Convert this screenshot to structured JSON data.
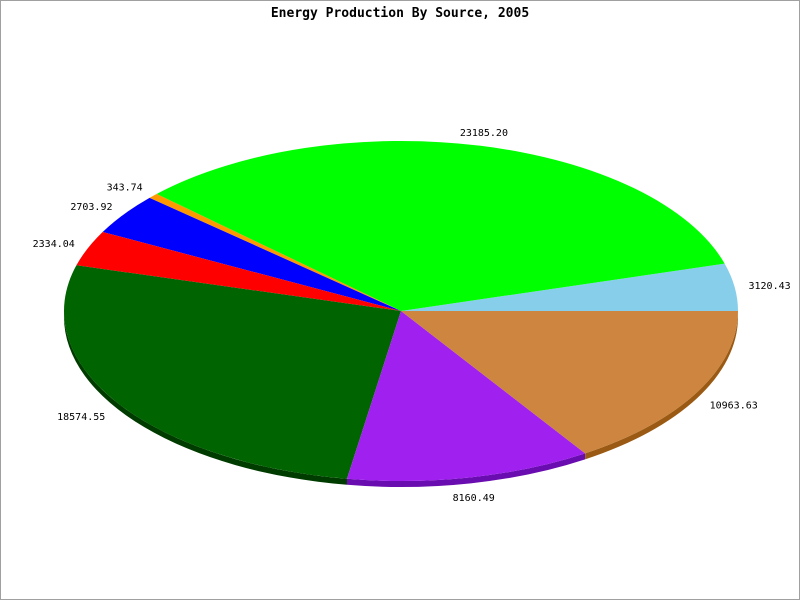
{
  "chart_data": {
    "type": "pie",
    "title": "Energy Production By Source, 2005",
    "start_angle_deg": 0,
    "direction": "counterclockwise",
    "slices": [
      {
        "value": 3120.43,
        "label": "3120.43",
        "color": "#87ceeb",
        "side": "#6fa9c2"
      },
      {
        "value": 23185.2,
        "label": "23185.20",
        "color": "#00ff00",
        "side": "#00b000"
      },
      {
        "value": 343.74,
        "label": "343.74",
        "color": "#ff9900",
        "side": "#c07000"
      },
      {
        "value": 2703.92,
        "label": "2703.92",
        "color": "#0000ff",
        "side": "#0000a8"
      },
      {
        "value": 2334.04,
        "label": "2334.04",
        "color": "#ff0000",
        "side": "#b00000"
      },
      {
        "value": 18574.55,
        "label": "18574.55",
        "color": "#006400",
        "side": "#003c00"
      },
      {
        "value": 8160.49,
        "label": "8160.49",
        "color": "#a020f0",
        "side": "#6a0db0"
      },
      {
        "value": 10963.63,
        "label": "10963.63",
        "color": "#cd853f",
        "side": "#9a5a14"
      }
    ]
  }
}
